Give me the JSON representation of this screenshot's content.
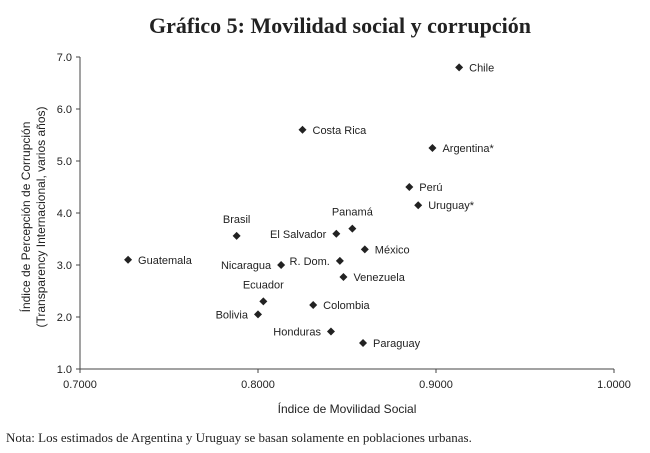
{
  "chart_data": {
    "type": "scatter",
    "title": "Gráfico 5:  Movilidad social y corrupción",
    "xlabel": "Índice de Movilidad Social",
    "ylabel_line1": "Índice de Percepción de Corrupción",
    "ylabel_line2": "(Transparency Internacional, varios años)",
    "xlim": [
      0.7,
      1.0
    ],
    "ylim": [
      1.0,
      7.0
    ],
    "xticks": [
      0.7,
      0.8,
      0.9,
      1.0
    ],
    "xtick_labels": [
      "0.7000",
      "0.8000",
      "0.9000",
      "1.0000"
    ],
    "yticks": [
      1,
      2,
      3,
      4,
      5,
      6,
      7
    ],
    "ytick_labels": [
      "1.0",
      "2.0",
      "3.0",
      "4.0",
      "5.0",
      "6.0",
      "7.0"
    ],
    "grid": false,
    "marker": "diamond",
    "points": [
      {
        "label": "Chile",
        "x": 0.913,
        "y": 6.8,
        "pos": "right"
      },
      {
        "label": "Costa Rica",
        "x": 0.825,
        "y": 5.6,
        "pos": "right"
      },
      {
        "label": "Argentina*",
        "x": 0.898,
        "y": 5.25,
        "pos": "right"
      },
      {
        "label": "Perú",
        "x": 0.885,
        "y": 4.5,
        "pos": "right"
      },
      {
        "label": "Uruguay*",
        "x": 0.89,
        "y": 4.15,
        "pos": "right"
      },
      {
        "label": "Brasil",
        "x": 0.788,
        "y": 3.56,
        "pos": "above"
      },
      {
        "label": "Panamá",
        "x": 0.853,
        "y": 3.7,
        "pos": "above"
      },
      {
        "label": "El Salvador",
        "x": 0.844,
        "y": 3.6,
        "pos": "left"
      },
      {
        "label": "México",
        "x": 0.86,
        "y": 3.3,
        "pos": "right"
      },
      {
        "label": "Guatemala",
        "x": 0.727,
        "y": 3.1,
        "pos": "right"
      },
      {
        "label": "Nicaragua",
        "x": 0.813,
        "y": 3.0,
        "pos": "left"
      },
      {
        "label": "R. Dom.",
        "x": 0.846,
        "y": 3.08,
        "pos": "left"
      },
      {
        "label": "Venezuela",
        "x": 0.848,
        "y": 2.77,
        "pos": "right"
      },
      {
        "label": "Ecuador",
        "x": 0.803,
        "y": 2.3,
        "pos": "above"
      },
      {
        "label": "Colombia",
        "x": 0.831,
        "y": 2.23,
        "pos": "right"
      },
      {
        "label": "Bolivia",
        "x": 0.8,
        "y": 2.05,
        "pos": "left"
      },
      {
        "label": "Honduras",
        "x": 0.841,
        "y": 1.72,
        "pos": "left"
      },
      {
        "label": "Paraguay",
        "x": 0.859,
        "y": 1.5,
        "pos": "right"
      }
    ]
  },
  "note": "Nota: Los estimados de Argentina y Uruguay se basan solamente en poblaciones urbanas."
}
